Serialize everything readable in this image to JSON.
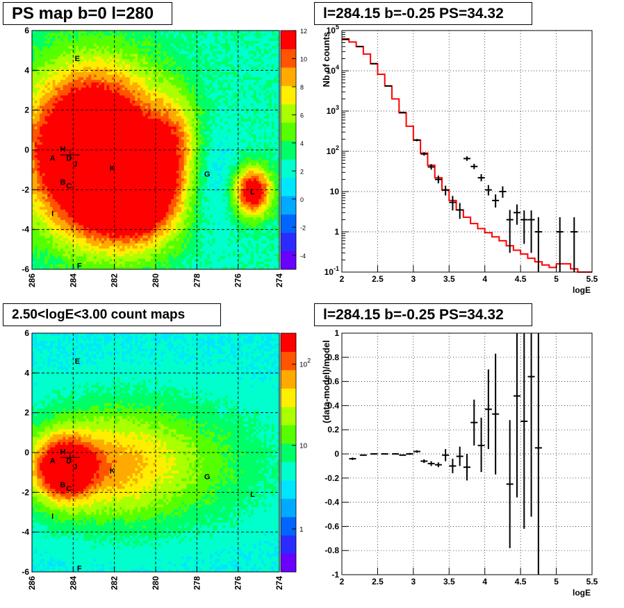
{
  "panels": {
    "ps_map": {
      "title": "PS map b=0 l=280"
    },
    "spectrum": {
      "title": "l=284.15 b=-0.25 PS=34.32"
    },
    "count_map": {
      "title": "2.50<logE<3.00 count maps"
    },
    "residual": {
      "title": "l=284.15 b=-0.25 PS=34.32"
    }
  },
  "sources": [
    {
      "name": "A",
      "l": 285.0,
      "b": -0.4
    },
    {
      "name": "H",
      "l": 284.5,
      "b": 0.05
    },
    {
      "name": "D",
      "l": 284.2,
      "b": -0.4
    },
    {
      "name": "J",
      "l": 283.9,
      "b": -0.7
    },
    {
      "name": "B",
      "l": 284.5,
      "b": -1.6
    },
    {
      "name": "C",
      "l": 284.2,
      "b": -1.8
    },
    {
      "name": "K",
      "l": 282.1,
      "b": -0.9
    },
    {
      "name": "G",
      "l": 277.5,
      "b": -1.2
    },
    {
      "name": "L",
      "l": 275.3,
      "b": -2.1
    },
    {
      "name": "I",
      "l": 285.0,
      "b": -3.2
    },
    {
      "name": "E",
      "l": 283.8,
      "b": 4.6
    },
    {
      "name": "F",
      "l": 283.7,
      "b": -5.8
    }
  ],
  "colors": {
    "palette": [
      "#6a00ff",
      "#2b2bff",
      "#0066ff",
      "#00aaff",
      "#00e6ff",
      "#00ffcc",
      "#00ff66",
      "#55ff00",
      "#aaff00",
      "#ffee00",
      "#ffaa00",
      "#ff5500",
      "#ff0000"
    ],
    "model_line": "#ff0000",
    "data_points": "#000000"
  },
  "chart_data": [
    {
      "type": "heatmap",
      "name": "ps_map",
      "title": "PS map b=0 l=280",
      "x_range": [
        286,
        274
      ],
      "y_range": [
        -6,
        6
      ],
      "x_ticks": [
        "286",
        "284",
        "282",
        "280",
        "278",
        "276",
        "274"
      ],
      "y_ticks": [
        "-6",
        "-4",
        "-2",
        "0",
        "2",
        "4",
        "6"
      ],
      "zlim": [
        -5,
        12
      ],
      "colorbar_ticks": [
        "-4",
        "-2",
        "0",
        "2",
        "4",
        "6",
        "8",
        "10",
        "12"
      ],
      "grid": true,
      "components": [
        {
          "kind": "ellipse",
          "l": 283.0,
          "b": 0.0,
          "sl": 2.9,
          "sb": 3.5,
          "amp": 16
        },
        {
          "kind": "ellipse",
          "l": 281.0,
          "b": -2.2,
          "sl": 2.2,
          "sb": 2.2,
          "amp": 10
        },
        {
          "kind": "ellipse",
          "l": 275.3,
          "b": -2.1,
          "sl": 0.8,
          "sb": 1.1,
          "amp": 11
        },
        {
          "kind": "ellipse",
          "l": 277.5,
          "b": -1.5,
          "sl": 1.4,
          "sb": 2.5,
          "amp": -2.5
        },
        {
          "kind": "ellipse",
          "l": 279.0,
          "b": 0.5,
          "sl": 1.0,
          "sb": 2.0,
          "amp": 4
        }
      ],
      "baseline": 2.6
    },
    {
      "type": "line",
      "name": "spectrum",
      "title": "l=284.15 b=-0.25 PS=34.32",
      "xlabel": "logE",
      "ylabel": "Nb of counts",
      "xlim": [
        2,
        5.5
      ],
      "ylim": [
        0.1,
        100000
      ],
      "yscale": "log",
      "grid": true,
      "x_ticks": [
        "2",
        "2.5",
        "3",
        "3.5",
        "4",
        "4.5",
        "5",
        "5.5"
      ],
      "y_ticks": [
        "10^-1",
        "1",
        "10",
        "10^2",
        "10^3",
        "10^4",
        "10^5"
      ],
      "series": [
        {
          "kind": "model_histogram",
          "bin_width": 0.1,
          "bin_start": 2.0,
          "values": [
            62000,
            52000,
            40000,
            26000,
            15000,
            8200,
            4200,
            2000,
            900,
            420,
            190,
            90,
            45,
            22,
            11,
            6,
            3.5,
            2.3,
            1.6,
            1.2,
            0.95,
            0.75,
            0.6,
            0.45,
            0.35,
            0.28,
            0.22,
            0.18,
            0.15,
            0.13,
            0.16,
            0.16,
            0.12,
            0.1,
            0.09
          ]
        },
        {
          "kind": "data_points",
          "points": [
            {
              "x": 2.05,
              "y": 60000,
              "lo": 59500,
              "hi": 60500
            },
            {
              "x": 2.25,
              "y": 40000,
              "lo": 39600,
              "hi": 40400
            },
            {
              "x": 2.45,
              "y": 15000,
              "lo": 14800,
              "hi": 15200
            },
            {
              "x": 2.65,
              "y": 4200,
              "lo": 4100,
              "hi": 4300
            },
            {
              "x": 2.85,
              "y": 920,
              "lo": 890,
              "hi": 950
            },
            {
              "x": 3.05,
              "y": 190,
              "lo": 178,
              "hi": 202
            },
            {
              "x": 3.15,
              "y": 86,
              "lo": 78,
              "hi": 95
            },
            {
              "x": 3.25,
              "y": 41,
              "lo": 35,
              "hi": 48
            },
            {
              "x": 3.35,
              "y": 20,
              "lo": 16,
              "hi": 25
            },
            {
              "x": 3.45,
              "y": 10.9,
              "lo": 8,
              "hi": 14
            },
            {
              "x": 3.55,
              "y": 5.4,
              "lo": 3.4,
              "hi": 7.8
            },
            {
              "x": 3.65,
              "y": 3.5,
              "lo": 2.1,
              "hi": 5.2
            },
            {
              "x": 3.75,
              "y": 66,
              "lo": 58,
              "hi": 75
            },
            {
              "x": 3.85,
              "y": 42,
              "lo": 36,
              "hi": 49
            },
            {
              "x": 3.95,
              "y": 22,
              "lo": 18,
              "hi": 27
            },
            {
              "x": 4.05,
              "y": 11,
              "lo": 8,
              "hi": 14.5
            },
            {
              "x": 4.15,
              "y": 6,
              "lo": 4,
              "hi": 8.5
            },
            {
              "x": 4.25,
              "y": 10,
              "lo": 7,
              "hi": 13.5
            },
            {
              "x": 4.35,
              "y": 2,
              "lo": 0.3,
              "hi": 3.5
            },
            {
              "x": 4.45,
              "y": 3,
              "lo": 1.5,
              "hi": 4.8
            },
            {
              "x": 4.55,
              "y": 2,
              "lo": 0.5,
              "hi": 3.4
            },
            {
              "x": 4.65,
              "y": 2,
              "lo": 0.3,
              "hi": 3.4
            },
            {
              "x": 4.75,
              "y": 1,
              "lo": 0.1,
              "hi": 2.3
            },
            {
              "x": 5.05,
              "y": 1,
              "lo": 0.1,
              "hi": 2.3
            },
            {
              "x": 5.25,
              "y": 1,
              "lo": 0.1,
              "hi": 2.3
            }
          ]
        }
      ]
    },
    {
      "type": "heatmap",
      "name": "count_map",
      "title": "2.50<logE<3.00 count maps",
      "x_range": [
        286,
        274
      ],
      "y_range": [
        -6,
        6
      ],
      "x_ticks": [
        "286",
        "284",
        "282",
        "280",
        "278",
        "276",
        "274"
      ],
      "y_ticks": [
        "-6",
        "-4",
        "-2",
        "0",
        "2",
        "4",
        "6"
      ],
      "colorbar_ticks": [
        "1",
        "10",
        "10^2"
      ],
      "zscale": "log",
      "grid": true,
      "components": [
        {
          "kind": "ellipse",
          "l": 284.5,
          "b": -0.8,
          "sl": 1.3,
          "sb": 1.4,
          "amp": 0.55
        },
        {
          "kind": "ellipse",
          "l": 282.5,
          "b": -0.7,
          "sl": 3.3,
          "sb": 2.4,
          "amp": 0.25
        },
        {
          "kind": "ellipse",
          "l": 280.0,
          "b": -0.5,
          "sl": 5.5,
          "sb": 3.0,
          "amp": 0.2
        }
      ],
      "baseline": 0.38
    },
    {
      "type": "scatter",
      "name": "residual",
      "title": "l=284.15 b=-0.25 PS=34.32",
      "xlabel": "logE",
      "ylabel": "(data-model)/model",
      "xlim": [
        2,
        5.5
      ],
      "ylim": [
        -1,
        1
      ],
      "grid": true,
      "x_ticks": [
        "2",
        "2.5",
        "3",
        "3.5",
        "4",
        "4.5",
        "5",
        "5.5"
      ],
      "y_ticks": [
        "-1",
        "-0.8",
        "-0.6",
        "-0.4",
        "-0.2",
        "0",
        "0.2",
        "0.4",
        "0.6",
        "0.8",
        "1"
      ],
      "points": [
        {
          "x": 2.15,
          "y": -0.04,
          "lo": -0.05,
          "hi": -0.03
        },
        {
          "x": 2.3,
          "y": -0.01,
          "lo": -0.015,
          "hi": -0.005
        },
        {
          "x": 2.45,
          "y": 0.0,
          "lo": -0.005,
          "hi": 0.005
        },
        {
          "x": 2.6,
          "y": 0.0,
          "lo": -0.005,
          "hi": 0.005
        },
        {
          "x": 2.75,
          "y": 0.0,
          "lo": -0.005,
          "hi": 0.005
        },
        {
          "x": 2.85,
          "y": -0.01,
          "lo": -0.015,
          "hi": -0.005
        },
        {
          "x": 2.95,
          "y": 0.0,
          "lo": -0.008,
          "hi": 0.008
        },
        {
          "x": 3.05,
          "y": 0.02,
          "lo": 0.01,
          "hi": 0.03
        },
        {
          "x": 3.15,
          "y": -0.06,
          "lo": -0.075,
          "hi": -0.045
        },
        {
          "x": 3.25,
          "y": -0.08,
          "lo": -0.1,
          "hi": -0.06
        },
        {
          "x": 3.35,
          "y": -0.09,
          "lo": -0.11,
          "hi": -0.07
        },
        {
          "x": 3.45,
          "y": -0.01,
          "lo": -0.06,
          "hi": 0.04
        },
        {
          "x": 3.55,
          "y": -0.1,
          "lo": -0.16,
          "hi": -0.04
        },
        {
          "x": 3.65,
          "y": -0.02,
          "lo": -0.1,
          "hi": 0.06
        },
        {
          "x": 3.75,
          "y": -0.11,
          "lo": -0.22,
          "hi": 0.0
        },
        {
          "x": 3.85,
          "y": 0.26,
          "lo": 0.07,
          "hi": 0.45
        },
        {
          "x": 3.95,
          "y": 0.07,
          "lo": -0.15,
          "hi": 0.3
        },
        {
          "x": 4.05,
          "y": 0.37,
          "lo": 0.04,
          "hi": 0.7
        },
        {
          "x": 4.15,
          "y": 0.33,
          "lo": -0.17,
          "hi": 0.83
        },
        {
          "x": 4.35,
          "y": -0.25,
          "lo": -0.78,
          "hi": 0.28
        },
        {
          "x": 4.45,
          "y": 0.48,
          "lo": -0.36,
          "hi": 1.0
        },
        {
          "x": 4.55,
          "y": 0.27,
          "lo": -0.62,
          "hi": 1.0
        },
        {
          "x": 4.65,
          "y": 0.64,
          "lo": -0.52,
          "hi": 1.0
        },
        {
          "x": 4.75,
          "y": 0.05,
          "lo": -1.0,
          "hi": 1.0
        }
      ]
    }
  ]
}
